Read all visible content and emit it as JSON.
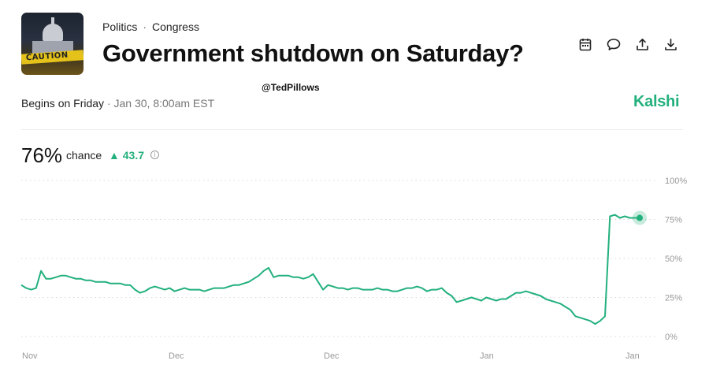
{
  "header": {
    "category": "Politics",
    "subcategory": "Congress",
    "title": "Government shutdown on Saturday?",
    "thumbnail_caption": "CAUTION"
  },
  "actions": [
    {
      "icon": "calendar-icon"
    },
    {
      "icon": "comment-icon"
    },
    {
      "icon": "share-icon"
    },
    {
      "icon": "download-icon"
    }
  ],
  "watermark": "@TedPillows",
  "subheader": {
    "begins_label": "Begins on Friday",
    "begins_time": "· Jan 30, 8:00am EST"
  },
  "brand": "Kalshi",
  "summary": {
    "percent": "76%",
    "chance_label": "chance",
    "delta": "43.7",
    "delta_direction": "up"
  },
  "colors": {
    "accent": "#22b07d",
    "grid": "#d9d9d9"
  },
  "chart_data": {
    "type": "line",
    "ylim": [
      0,
      100
    ],
    "y_ticks": [
      "100%",
      "75%",
      "50%",
      "25%",
      "0%"
    ],
    "x_ticks": [
      "Nov",
      "Dec",
      "Dec",
      "Jan",
      "Jan"
    ],
    "grid": true,
    "series": [
      {
        "values": [
          33,
          31,
          30,
          31,
          42,
          37,
          37,
          38,
          39,
          39,
          38,
          37,
          37,
          36,
          36,
          35,
          35,
          35,
          34,
          34,
          34,
          33,
          33,
          30,
          28,
          29,
          31,
          32,
          31,
          30,
          31,
          29,
          30,
          31,
          30,
          30,
          30,
          29,
          30,
          31,
          31,
          31,
          32,
          33,
          33,
          34,
          35,
          37,
          39,
          42,
          44,
          38,
          39,
          39,
          39,
          38,
          38,
          37,
          38,
          40,
          35,
          30,
          33,
          32,
          31,
          31,
          30,
          31,
          31,
          30,
          30,
          30,
          31,
          30,
          30,
          29,
          29,
          30,
          31,
          31,
          32,
          31,
          29,
          30,
          30,
          31,
          28,
          26,
          22,
          23,
          24,
          25,
          24,
          23,
          25,
          24,
          23,
          24,
          24,
          26,
          28,
          28,
          29,
          28,
          27,
          26,
          24,
          23,
          22,
          21,
          19,
          17,
          13,
          12,
          11,
          10,
          8,
          10,
          13,
          77,
          78,
          76,
          77,
          76,
          76,
          76
        ]
      }
    ]
  }
}
